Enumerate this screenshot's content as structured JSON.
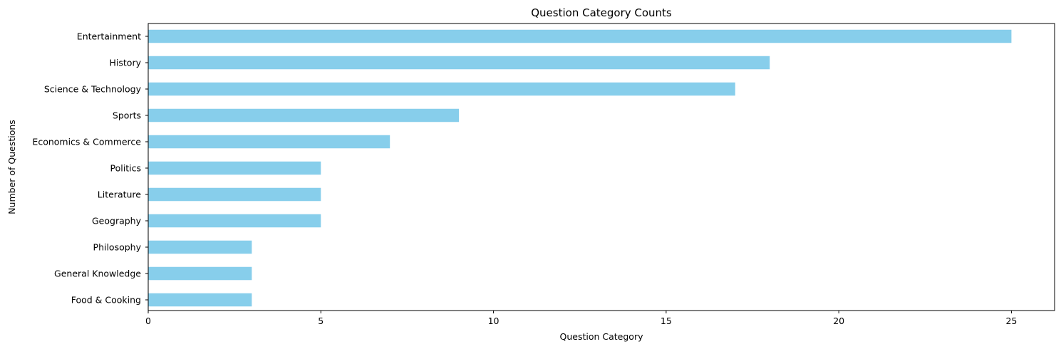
{
  "chart_data": {
    "type": "bar",
    "orientation": "horizontal",
    "title": "Question Category Counts",
    "xlabel": "Question Category",
    "ylabel": "Number of Questions",
    "categories": [
      "Entertainment",
      "History",
      "Science & Technology",
      "Sports",
      "Economics & Commerce",
      "Politics",
      "Literature",
      "Geography",
      "Philosophy",
      "General Knowledge",
      "Food & Cooking"
    ],
    "values": [
      25,
      18,
      17,
      9,
      7,
      5,
      5,
      5,
      3,
      3,
      3
    ],
    "xlim": [
      0,
      26.25
    ],
    "xticks": [
      0,
      5,
      10,
      15,
      20,
      25
    ],
    "bar_color": "#87CEEB",
    "grid": false,
    "legend": false
  }
}
